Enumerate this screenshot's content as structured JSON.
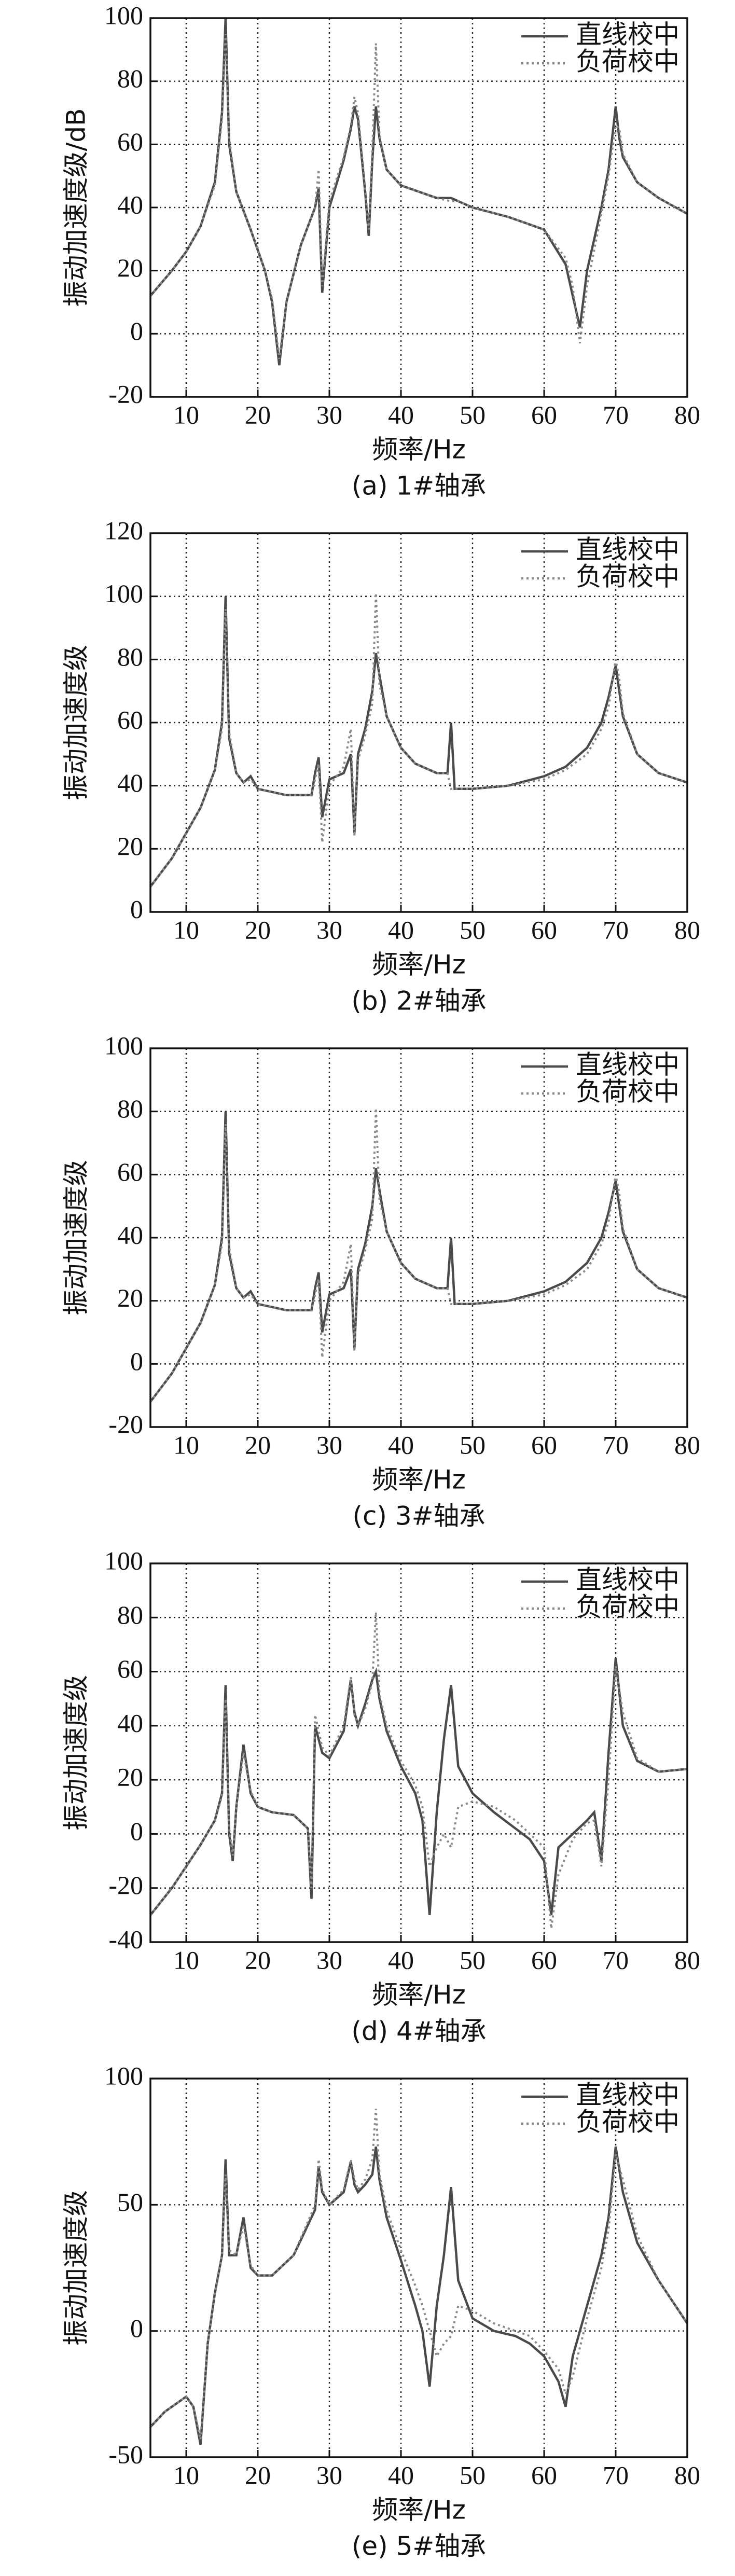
{
  "chart_data": [
    {
      "type": "line",
      "caption": "(a) 1#轴承",
      "xlabel": "频率/Hz",
      "ylabel": "振动加速度级/dB",
      "grid": true,
      "legend": "upper right",
      "xlim": [
        5,
        80
      ],
      "xticks": [
        10,
        20,
        30,
        40,
        50,
        60,
        70,
        80
      ],
      "ylim": [
        -20,
        100
      ],
      "yticks": [
        -20,
        0,
        20,
        40,
        60,
        80,
        100
      ],
      "x": [
        5,
        8,
        10,
        12,
        14,
        15,
        15.5,
        16,
        17,
        19,
        21,
        22,
        23,
        24,
        26,
        28,
        28.5,
        29,
        30,
        32,
        33,
        33.5,
        34,
        35,
        35.5,
        36,
        36.5,
        37,
        38,
        40,
        45,
        47,
        48,
        50,
        55,
        60,
        63,
        64,
        65,
        66,
        68,
        69,
        70,
        70.5,
        71,
        73,
        76,
        80
      ],
      "series": [
        {
          "name": "直线校中",
          "color": "#4a4a4a",
          "dash": "solid",
          "values": [
            12,
            20,
            26,
            34,
            48,
            70,
            100,
            60,
            45,
            33,
            20,
            10,
            -10,
            10,
            28,
            40,
            46,
            13,
            40,
            55,
            65,
            72,
            68,
            45,
            31,
            55,
            72,
            62,
            52,
            47,
            43,
            43,
            42,
            40,
            37,
            33,
            22,
            12,
            2,
            20,
            40,
            52,
            72,
            62,
            56,
            48,
            43,
            38
          ]
        },
        {
          "name": "负荷校中",
          "color": "#8a8a8a",
          "dash": "dotted",
          "values": [
            12,
            20,
            26,
            34,
            47,
            68,
            95,
            62,
            45,
            33,
            20,
            11,
            -8,
            10,
            28,
            40,
            52,
            15,
            42,
            56,
            66,
            75,
            70,
            46,
            33,
            58,
            92,
            63,
            52,
            47,
            43,
            42,
            42,
            40,
            37,
            33,
            24,
            15,
            -3,
            15,
            38,
            50,
            66,
            65,
            57,
            48,
            43,
            38
          ]
        }
      ]
    },
    {
      "type": "line",
      "caption": "(b) 2#轴承",
      "xlabel": "频率/Hz",
      "ylabel": "振动加速度级",
      "grid": true,
      "legend": "upper right",
      "xlim": [
        5,
        80
      ],
      "xticks": [
        10,
        20,
        30,
        40,
        50,
        60,
        70,
        80
      ],
      "ylim": [
        0,
        120
      ],
      "yticks": [
        0,
        20,
        40,
        60,
        80,
        100,
        120
      ],
      "x": [
        5,
        8,
        10,
        12,
        14,
        15,
        15.5,
        16,
        17,
        18,
        19,
        20,
        22,
        24,
        26,
        27.5,
        28,
        28.5,
        29,
        30,
        32,
        33,
        33.5,
        34,
        35,
        36,
        36.5,
        37,
        38,
        40,
        42,
        45,
        46.5,
        47,
        47.5,
        48,
        50,
        55,
        60,
        63,
        66,
        68,
        69,
        70,
        70.5,
        71,
        73,
        76,
        80
      ],
      "series": [
        {
          "name": "直线校中",
          "color": "#4a4a4a",
          "dash": "solid",
          "values": [
            8,
            17,
            25,
            33,
            45,
            60,
            100,
            55,
            44,
            41,
            43,
            39,
            38,
            37,
            37,
            37,
            44,
            49,
            30,
            42,
            44,
            50,
            25,
            50,
            58,
            70,
            82,
            75,
            62,
            52,
            47,
            44,
            44,
            60,
            39,
            39,
            39,
            40,
            43,
            46,
            52,
            60,
            68,
            78,
            70,
            62,
            50,
            44,
            41
          ]
        },
        {
          "name": "负荷校中",
          "color": "#8a8a8a",
          "dash": "dotted",
          "values": [
            8,
            17,
            25,
            33,
            45,
            58,
            96,
            57,
            44,
            41,
            42,
            39,
            38,
            37,
            37,
            37,
            42,
            47,
            22,
            40,
            46,
            58,
            24,
            48,
            56,
            66,
            101,
            72,
            62,
            52,
            47,
            44,
            44,
            39,
            39,
            39,
            39,
            40,
            42,
            45,
            50,
            58,
            65,
            80,
            74,
            63,
            50,
            44,
            41
          ]
        }
      ]
    },
    {
      "type": "line",
      "caption": "(c) 3#轴承",
      "xlabel": "频率/Hz",
      "ylabel": "振动加速度级",
      "grid": true,
      "legend": "upper right",
      "xlim": [
        5,
        80
      ],
      "xticks": [
        10,
        20,
        30,
        40,
        50,
        60,
        70,
        80
      ],
      "ylim": [
        -20,
        100
      ],
      "yticks": [
        -20,
        0,
        20,
        40,
        60,
        80,
        100
      ],
      "x": [
        5,
        8,
        10,
        12,
        14,
        15,
        15.5,
        16,
        17,
        18,
        19,
        20,
        22,
        24,
        26,
        27.5,
        28,
        28.5,
        29,
        30,
        32,
        33,
        33.5,
        34,
        35,
        36,
        36.5,
        37,
        38,
        40,
        42,
        45,
        46.5,
        47,
        47.5,
        48,
        50,
        55,
        60,
        63,
        66,
        68,
        69,
        70,
        70.5,
        71,
        73,
        76,
        80
      ],
      "series": [
        {
          "name": "直线校中",
          "color": "#4a4a4a",
          "dash": "solid",
          "values": [
            -12,
            -3,
            5,
            13,
            25,
            40,
            80,
            35,
            24,
            21,
            23,
            19,
            18,
            17,
            17,
            17,
            24,
            29,
            10,
            22,
            24,
            30,
            5,
            30,
            38,
            50,
            62,
            55,
            42,
            32,
            27,
            24,
            24,
            40,
            19,
            19,
            19,
            20,
            23,
            26,
            32,
            40,
            48,
            58,
            50,
            42,
            30,
            24,
            21
          ]
        },
        {
          "name": "负荷校中",
          "color": "#8a8a8a",
          "dash": "dotted",
          "values": [
            -12,
            -3,
            5,
            13,
            25,
            38,
            76,
            37,
            24,
            21,
            22,
            19,
            18,
            17,
            17,
            17,
            22,
            27,
            2,
            20,
            26,
            38,
            4,
            28,
            36,
            46,
            81,
            52,
            42,
            32,
            27,
            24,
            24,
            19,
            19,
            19,
            19,
            20,
            22,
            25,
            30,
            38,
            45,
            60,
            54,
            43,
            30,
            24,
            21
          ]
        }
      ]
    },
    {
      "type": "line",
      "caption": "(d) 4#轴承",
      "xlabel": "频率/Hz",
      "ylabel": "振动加速度级",
      "grid": true,
      "legend": "upper right",
      "xlim": [
        5,
        80
      ],
      "xticks": [
        10,
        20,
        30,
        40,
        50,
        60,
        70,
        80
      ],
      "ylim": [
        -40,
        100
      ],
      "yticks": [
        -40,
        -20,
        0,
        20,
        40,
        60,
        80,
        100
      ],
      "x": [
        5,
        8,
        10,
        12,
        14,
        15,
        15.5,
        16,
        16.5,
        17,
        18,
        19,
        20,
        22,
        25,
        27,
        27.5,
        28,
        29,
        30,
        32,
        33,
        33.5,
        34,
        35,
        36,
        36.5,
        37,
        38,
        40,
        42,
        43,
        44,
        45,
        46,
        47,
        48,
        50,
        53,
        56,
        58,
        60,
        61,
        62,
        64,
        66,
        67,
        68,
        69,
        70,
        71,
        73,
        76,
        80
      ],
      "series": [
        {
          "name": "直线校中",
          "color": "#4a4a4a",
          "dash": "solid",
          "values": [
            -30,
            -20,
            -12,
            -4,
            5,
            15,
            55,
            0,
            -10,
            10,
            33,
            15,
            10,
            8,
            7,
            2,
            -24,
            40,
            30,
            28,
            38,
            57,
            45,
            40,
            48,
            57,
            60,
            50,
            38,
            25,
            15,
            5,
            -30,
            8,
            35,
            55,
            25,
            15,
            8,
            2,
            -2,
            -10,
            -30,
            -5,
            0,
            5,
            8,
            -10,
            30,
            65,
            40,
            27,
            23,
            24
          ]
        },
        {
          "name": "负荷校中",
          "color": "#8a8a8a",
          "dash": "dotted",
          "values": [
            -30,
            -20,
            -12,
            -4,
            5,
            14,
            50,
            2,
            -8,
            10,
            30,
            16,
            10,
            8,
            7,
            2,
            -20,
            44,
            32,
            29,
            40,
            58,
            44,
            40,
            46,
            56,
            82,
            52,
            40,
            27,
            18,
            10,
            -12,
            -5,
            0,
            -5,
            10,
            12,
            10,
            5,
            0,
            -5,
            -35,
            -15,
            -2,
            4,
            5,
            -12,
            20,
            62,
            45,
            28,
            23,
            24
          ]
        }
      ]
    },
    {
      "type": "line",
      "caption": "(e) 5#轴承",
      "xlabel": "频率/Hz",
      "ylabel": "振动加速度级",
      "grid": true,
      "legend": "upper right",
      "xlim": [
        5,
        80
      ],
      "xticks": [
        10,
        20,
        30,
        40,
        50,
        60,
        70,
        80
      ],
      "ylim": [
        -50,
        100
      ],
      "yticks": [
        -50,
        0,
        50,
        100
      ],
      "x": [
        5,
        7,
        9,
        10,
        11,
        12,
        13,
        14,
        15,
        15.5,
        16,
        17,
        18,
        19,
        20,
        22,
        25,
        28,
        28.5,
        29,
        30,
        32,
        33,
        33.5,
        34,
        35,
        36,
        36.5,
        37,
        38,
        40,
        42,
        43,
        44,
        45,
        46,
        47,
        48,
        50,
        53,
        56,
        58,
        60,
        62,
        63,
        64,
        66,
        68,
        69,
        70,
        71,
        73,
        76,
        80
      ],
      "series": [
        {
          "name": "直线校中",
          "color": "#4a4a4a",
          "dash": "solid",
          "values": [
            -38,
            -32,
            -28,
            -26,
            -30,
            -45,
            -5,
            15,
            30,
            68,
            30,
            30,
            45,
            25,
            22,
            22,
            30,
            48,
            65,
            55,
            50,
            55,
            67,
            58,
            55,
            58,
            62,
            73,
            60,
            45,
            28,
            10,
            0,
            -22,
            10,
            30,
            57,
            20,
            5,
            0,
            -2,
            -5,
            -10,
            -20,
            -30,
            -10,
            10,
            30,
            45,
            73,
            55,
            35,
            20,
            3
          ]
        },
        {
          "name": "负荷校中",
          "color": "#8a8a8a",
          "dash": "dotted",
          "values": [
            -38,
            -32,
            -28,
            -26,
            -30,
            -43,
            -5,
            15,
            30,
            62,
            32,
            30,
            42,
            26,
            22,
            22,
            30,
            50,
            68,
            56,
            50,
            56,
            68,
            60,
            56,
            60,
            68,
            88,
            62,
            48,
            32,
            18,
            10,
            0,
            -10,
            -5,
            -2,
            10,
            8,
            3,
            0,
            -2,
            -8,
            -15,
            -25,
            -18,
            5,
            25,
            40,
            70,
            60,
            38,
            20,
            3
          ]
        }
      ]
    }
  ]
}
